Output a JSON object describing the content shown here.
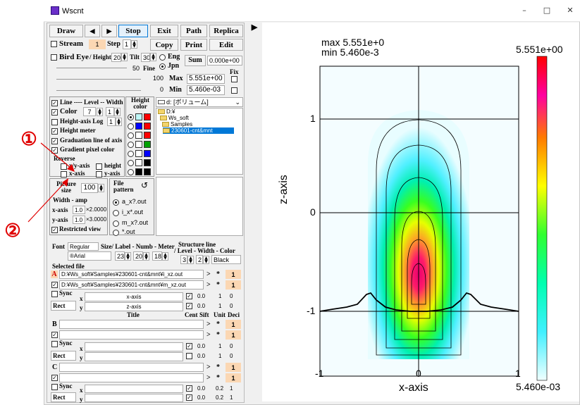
{
  "window": {
    "title": "Wscnt"
  },
  "toolbar": {
    "draw": "Draw",
    "prev": "◀",
    "next": "▶",
    "stop": "Stop",
    "exit": "Exit",
    "path": "Path",
    "replica": "Replica",
    "copy": "Copy",
    "print": "Print",
    "edit": "Edit",
    "play": "▶"
  },
  "row2": {
    "stream": "Stream",
    "stream_val": "1",
    "step": "Step",
    "step_val": "1"
  },
  "birdeye": {
    "label": "Bird Eye",
    "height": "/ Height",
    "height_val": "20",
    "tilt": "Tilt",
    "tilt_val": "30",
    "eng": "Eng",
    "jpn": "Jpn",
    "sum": "Sum",
    "sum_val": "0.000e+00",
    "fine_val": "50",
    "fine": "Fine",
    "fix": "Fix",
    "max_label": "Max",
    "max_field": "100",
    "max_val": "5.551e+00",
    "min_label": "Min",
    "min_field": "0",
    "min_val": "5.460e-03"
  },
  "lines": {
    "line": "Line ---- Level -- Width",
    "color": "Color",
    "color_val": "7",
    "width_val": "1",
    "hlog": "Height-axis Log",
    "hlog_val": "1",
    "hmeter": "Height meter",
    "grad": "Graduation line of axis",
    "gradpix": "Gradient pixel color",
    "reverse": "Reverse",
    "xyaxis": "x/y-axis",
    "height_rev": "height",
    "xaxis": "x-axis",
    "yaxis": "y-axis",
    "height_color": "Height color"
  },
  "drive": {
    "label": "d: [ボリューム]"
  },
  "tree": [
    "D:¥",
    "Ws_soft",
    "Samples",
    "230601-cnt&mnt"
  ],
  "picture": {
    "size": "Picture size",
    "size_val": "100",
    "width_amp": "Width - amp",
    "xaxis": "x-axis",
    "x1": "1.0",
    "x2": "×2.0000",
    "yaxis": "y-axis",
    "y1": "1.0",
    "y2": "×3.0000",
    "restricted": "Restricted view"
  },
  "pattern": {
    "label": "File pattern",
    "reset": "↺",
    "items": [
      "a_x?.out",
      "i_x*.out",
      "m_x?.out",
      "*.out"
    ]
  },
  "font": {
    "font": "Font",
    "font_val": "Regular",
    "face": "®Arial",
    "sizes": "Size/ Label - Numb - Meter",
    "s1": "23",
    "s2": "20",
    "s3": "18",
    "structure": "Structure line",
    "structure2": "/ Level - Width - Color",
    "l1": "3",
    "l2": "2",
    "color": "Black"
  },
  "files": {
    "selected": "Selected file",
    "A": "A",
    "file1": "D:¥Ws_soft¥Samples¥230601-cnt&mnt¥i_xz.out",
    "file2": "D:¥Ws_soft¥Samples¥230601-cnt&mnt¥m_xz.out",
    "sync": "Sync",
    "rect": "Rect",
    "xaxis": "x-axis",
    "zaxis": "z-axis",
    "x": "x",
    "y": "y",
    "title": "Title",
    "cent": "Cent",
    "sift": "Sift",
    "unit": "Unit",
    "deci": "Deci",
    "B": "B",
    "C": "C",
    "v00": "0.0",
    "v1": "1",
    "v0": "0",
    "v02": "0.2",
    "gt": ">",
    "star": "*"
  },
  "annotations": {
    "one": "①",
    "two": "②"
  },
  "plot": {
    "max": "max  5.551e+0",
    "min": "min  5.460e-3",
    "cb_max": "5.551e+00",
    "cb_min": "5.460e-03",
    "xlabel": "x-axis",
    "ylabel": "z-axis",
    "xt": [
      "-1",
      "0",
      "1"
    ],
    "yt": [
      "1",
      "0",
      "-1"
    ]
  }
}
